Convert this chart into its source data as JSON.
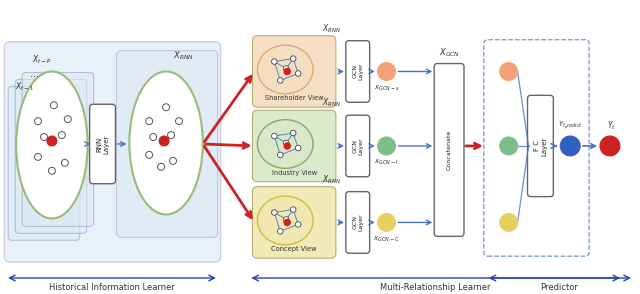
{
  "bg_color": "#ffffff",
  "light_blue_bg": "#dce9f5",
  "shareholder_bg": "#f5ddc0",
  "industry_bg": "#d8e8c8",
  "concept_bg": "#f0e8b0",
  "fig_width": 6.4,
  "fig_height": 2.94,
  "labels": {
    "hist_learner": "Historical Information Learner",
    "multi_learner": "Multi-Relationship Learner",
    "predictor": "Predictor",
    "rnn_layer": "RNN Layer",
    "gcn_layer": "GCN Layer",
    "concatenate": "Concatenate",
    "fc_layer": "F C Layer",
    "shareholder_view": "Shareholder View",
    "industry_view": "Industry View",
    "concept_view": "Concept View",
    "x_t_p": "X_{t-P}",
    "x_t_1": "X_{t-1}",
    "x_rnn": "X_{RNN}",
    "x_gcn": "X_{GCN}",
    "x_gcn_s": "x_{GCN-s}",
    "x_gcn_i": "x_{GCN-I}",
    "x_gcn_c": "x_{GCN-C}",
    "y_t_predict": "Y_{t_predict}",
    "y_t": "Y_t"
  },
  "colors": {
    "red": "#cc2222",
    "blue_arrow": "#4472c4",
    "red_arrow": "#cc2222",
    "node_fill": "#ffffff",
    "node_red": "#cc2222",
    "salmon": "#f4a07a",
    "green_circle": "#7dbd8a",
    "yellow_circle": "#e8d060",
    "blue_circle": "#3060c0",
    "dark_blue_arrow": "#2244aa"
  }
}
